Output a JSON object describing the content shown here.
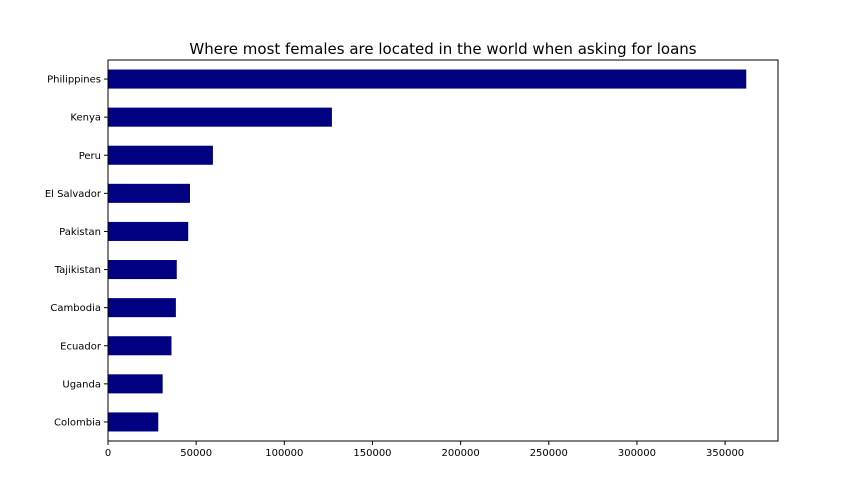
{
  "chart_data": {
    "type": "bar",
    "orientation": "horizontal",
    "title": "Where most females are located in the world when asking for loans",
    "xlabel": "",
    "ylabel": "",
    "categories": [
      "Philippines",
      "Kenya",
      "Peru",
      "El Salvador",
      "Pakistan",
      "Tajikistan",
      "Cambodia",
      "Ecuador",
      "Uganda",
      "Colombia"
    ],
    "values": [
      362000,
      127000,
      59500,
      46500,
      45500,
      39000,
      38500,
      36000,
      31000,
      28500
    ],
    "xlim": [
      0,
      380000
    ],
    "xticks": [
      0,
      50000,
      100000,
      150000,
      200000,
      250000,
      300000,
      350000
    ],
    "bar_color": "#000080",
    "grid": false,
    "legend": "none"
  }
}
